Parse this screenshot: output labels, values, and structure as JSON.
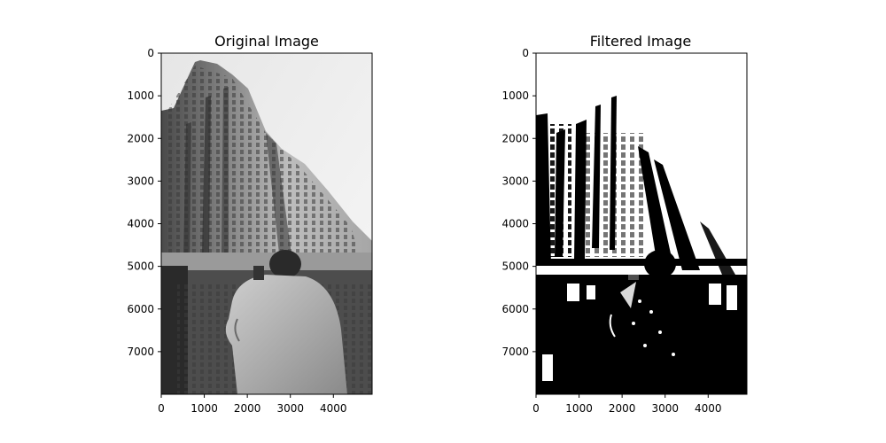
{
  "chart_data": [
    {
      "type": "image",
      "title": "Original Image",
      "content": "grayscale photograph",
      "colormap": "gray",
      "xlabel": "",
      "ylabel": "",
      "xlim": [
        0,
        4900
      ],
      "ylim": [
        8000,
        0
      ],
      "xticks": [
        0,
        1000,
        2000,
        3000,
        4000
      ],
      "yticks": [
        0,
        1000,
        2000,
        3000,
        4000,
        5000,
        6000,
        7000
      ],
      "grid": false
    },
    {
      "type": "image",
      "title": "Filtered Image",
      "content": "binary thresholded image",
      "colormap": "gray",
      "xlabel": "",
      "ylabel": "",
      "xlim": [
        0,
        4900
      ],
      "ylim": [
        8000,
        0
      ],
      "xticks": [
        0,
        1000,
        2000,
        3000,
        4000
      ],
      "yticks": [
        0,
        1000,
        2000,
        3000,
        4000,
        5000,
        6000,
        7000
      ],
      "grid": false
    }
  ]
}
